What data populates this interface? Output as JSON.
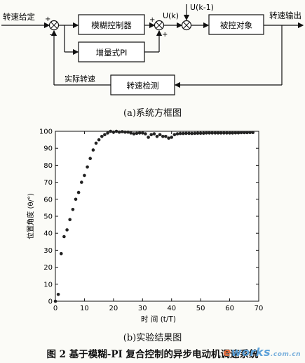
{
  "diagram": {
    "input_label": "转速给定",
    "output_label": "转速输出",
    "fuzzy_block": "模糊控制器",
    "pi_block": "增量式PI",
    "plant_block": "被控对象",
    "sensor_block": "转速检测",
    "feedback_label": "实际转速",
    "u_k_label": "U(k)",
    "u_k1_label": "U(k-1)",
    "plus_sign": "+",
    "minus_sign": "−"
  },
  "caption_a": "(a)系统方框图",
  "caption_b": "(b)实验结果图",
  "figure_title": "图 2 基于模糊-PI 复合控制的异步电动机调速系统",
  "logo": {
    "e": "e",
    "rest": "works",
    "dotcom": ".com.cn"
  },
  "chart_data": {
    "type": "scatter",
    "xlabel": "时 间 (t/T)",
    "ylabel": "位置角度 (θ/°)",
    "xlim": [
      0,
      70
    ],
    "ylim": [
      0,
      100
    ],
    "xticks": [
      0,
      10,
      20,
      30,
      40,
      50,
      60,
      70
    ],
    "yticks": [
      0,
      10,
      20,
      30,
      40,
      50,
      60,
      70,
      80,
      90,
      100
    ],
    "grid": false,
    "series": [
      {
        "marker_color": "#222222",
        "x": [
          0,
          1,
          2,
          3,
          4,
          5,
          6,
          7,
          8,
          9,
          10,
          11,
          12,
          13,
          14,
          15,
          16,
          17,
          18,
          19,
          20,
          21,
          22,
          23,
          24,
          25,
          26,
          27,
          28,
          29,
          30,
          31,
          32,
          33,
          34,
          35,
          36,
          37,
          38,
          39,
          40,
          41,
          42,
          43,
          44,
          45,
          46,
          47,
          48,
          49,
          50,
          51,
          52,
          53,
          54,
          55,
          56,
          57,
          58,
          59,
          60,
          61,
          62,
          63,
          64,
          65,
          66,
          67,
          68
        ],
        "y": [
          0,
          4,
          28,
          38,
          42,
          48,
          54,
          60,
          64,
          70,
          74,
          79,
          84,
          89,
          93,
          95,
          97,
          98,
          99,
          100,
          99.5,
          100,
          99.5,
          99.8,
          99.5,
          99.5,
          99,
          98.5,
          98.8,
          99,
          99,
          98.5,
          96.5,
          98,
          98.5,
          97,
          98,
          97,
          97,
          96,
          96.5,
          98,
          98.5,
          98.7,
          98.7,
          98.8,
          98.8,
          98.7,
          98.8,
          98.9,
          98.9,
          98.9,
          99,
          99,
          99,
          99,
          99,
          99,
          99,
          99,
          99,
          99,
          99.1,
          99.1,
          99.2,
          99.2,
          99.2,
          99.3,
          99.3
        ]
      }
    ]
  }
}
